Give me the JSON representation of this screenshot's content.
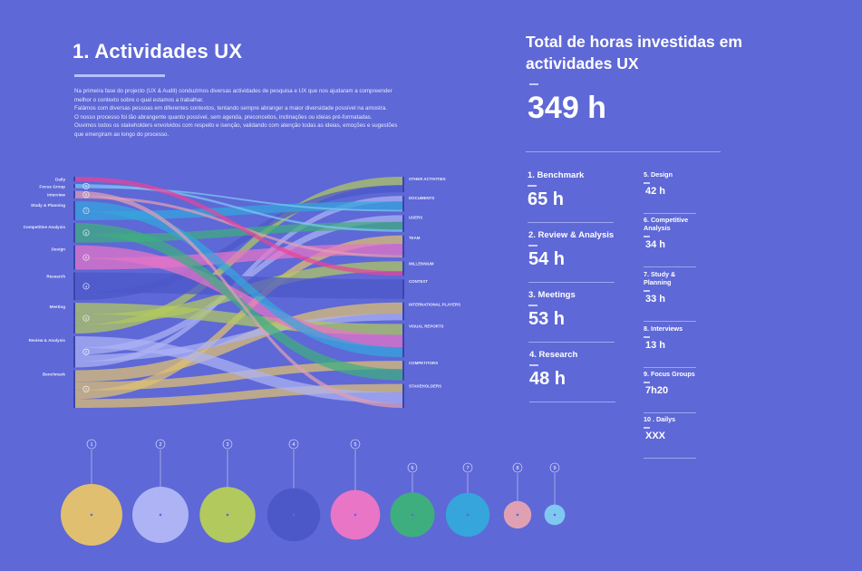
{
  "header": {
    "title": "1. Actividades UX",
    "intro_lines": [
      "Na primeira fase do projecto (UX & Audit) conduzimos diversas actividades de pesquisa e UX  que nos ajudaram a compreender",
      "melhor o contexto sobre o qual estamos a trabalhar.",
      "Falámos com diversas pessoas em diferentes contextos, tentando sempre abranger a maior diversidade possível na amostra.",
      "O nosso processo foi tão abrangente quanto possível, sem agenda, preconceitos, inclinações ou ideias pré-formatadas.",
      "Ouvimos todos os stakeholders envolvidos com respeito e isenção, validando com atenção todas as ideias, emoções e sugestões",
      "que emergiram ao longo do processo."
    ]
  },
  "summary": {
    "title": "Total de horas investidas em actividades UX",
    "total": "349 h",
    "items": [
      {
        "label": "1. Benchmark",
        "value": "65 h"
      },
      {
        "label": "2. Review & Analysis",
        "value": "54 h"
      },
      {
        "label": "3. Meetings",
        "value": "53 h"
      },
      {
        "label": "4. Research",
        "value": "48 h"
      },
      {
        "label": "5. Design",
        "value": "42 h"
      },
      {
        "label": "6. Competitive Analysis",
        "value": "34 h"
      },
      {
        "label": "7. Study & Planning",
        "value": "33 h"
      },
      {
        "label": "8. Interviews",
        "value": "13 h"
      },
      {
        "label": "9. Focus Groups",
        "value": "7h20"
      },
      {
        "label": "10 . Dailys",
        "value": "XXX"
      }
    ]
  },
  "chart_data": [
    {
      "type": "sankey",
      "title": "",
      "sources": [
        {
          "name": "Daily",
          "num": "",
          "color": "#e8449a"
        },
        {
          "name": "Focus Group",
          "num": "9",
          "color": "#7ec8f2"
        },
        {
          "name": "Interview",
          "num": "8",
          "color": "#dfa0b4"
        },
        {
          "name": "Study & Planning",
          "num": "7",
          "color": "#35a5dc"
        },
        {
          "name": "Competitive Analysis",
          "num": "6",
          "color": "#3fae7e"
        },
        {
          "name": "Design",
          "num": "5",
          "color": "#e875c6"
        },
        {
          "name": "Research",
          "num": "4",
          "color": "#4c58c8"
        },
        {
          "name": "Meeting",
          "num": "3",
          "color": "#b2c95e"
        },
        {
          "name": "Review & Analysis",
          "num": "2",
          "color": "#adb3f4"
        },
        {
          "name": "Benchmark",
          "num": "1",
          "color": "#e0c070"
        }
      ],
      "targets": [
        "OTHER ACTIVITIES",
        "DOCUMENTS",
        "USERS",
        "TEAM",
        "MILLENNIUM",
        "CONTEXT",
        "INTERNATIONAL PLAYERS",
        "VISUAL REPORTS",
        "COMPETITORS",
        "STAKEHOLDERS"
      ],
      "links": [
        {
          "source": 9,
          "target": 6,
          "value": 20
        },
        {
          "source": 9,
          "target": 8,
          "value": 15
        },
        {
          "source": 9,
          "target": 3,
          "value": 15
        },
        {
          "source": 9,
          "target": 9,
          "value": 15
        },
        {
          "source": 8,
          "target": 9,
          "value": 20
        },
        {
          "source": 8,
          "target": 2,
          "value": 12
        },
        {
          "source": 8,
          "target": 6,
          "value": 12
        },
        {
          "source": 8,
          "target": 1,
          "value": 10
        },
        {
          "source": 7,
          "target": 7,
          "value": 20
        },
        {
          "source": 7,
          "target": 4,
          "value": 18
        },
        {
          "source": 7,
          "target": 0,
          "value": 15
        },
        {
          "source": 6,
          "target": 5,
          "value": 35
        },
        {
          "source": 6,
          "target": 0,
          "value": 13
        },
        {
          "source": 5,
          "target": 7,
          "value": 22
        },
        {
          "source": 5,
          "target": 3,
          "value": 20
        },
        {
          "source": 4,
          "target": 8,
          "value": 20
        },
        {
          "source": 4,
          "target": 2,
          "value": 14
        },
        {
          "source": 3,
          "target": 7,
          "value": 18
        },
        {
          "source": 3,
          "target": 1,
          "value": 15
        },
        {
          "source": 2,
          "target": 9,
          "value": 8
        },
        {
          "source": 2,
          "target": 3,
          "value": 5
        },
        {
          "source": 1,
          "target": 2,
          "value": 4
        },
        {
          "source": 1,
          "target": 1,
          "value": 3
        },
        {
          "source": 0,
          "target": 4,
          "value": 8
        }
      ]
    },
    {
      "type": "bubble",
      "title": "",
      "categories": [
        "1",
        "2",
        "3",
        "4",
        "5",
        "6",
        "7",
        "8",
        "9"
      ],
      "values": [
        65,
        54,
        53,
        48,
        42,
        34,
        33,
        13,
        7.33
      ],
      "colors": [
        "#e0c070",
        "#adb3f4",
        "#b2c95e",
        "#4c58c8",
        "#e875c6",
        "#3fae7e",
        "#35a5dc",
        "#dfa0b4",
        "#7ec8f2"
      ]
    }
  ]
}
